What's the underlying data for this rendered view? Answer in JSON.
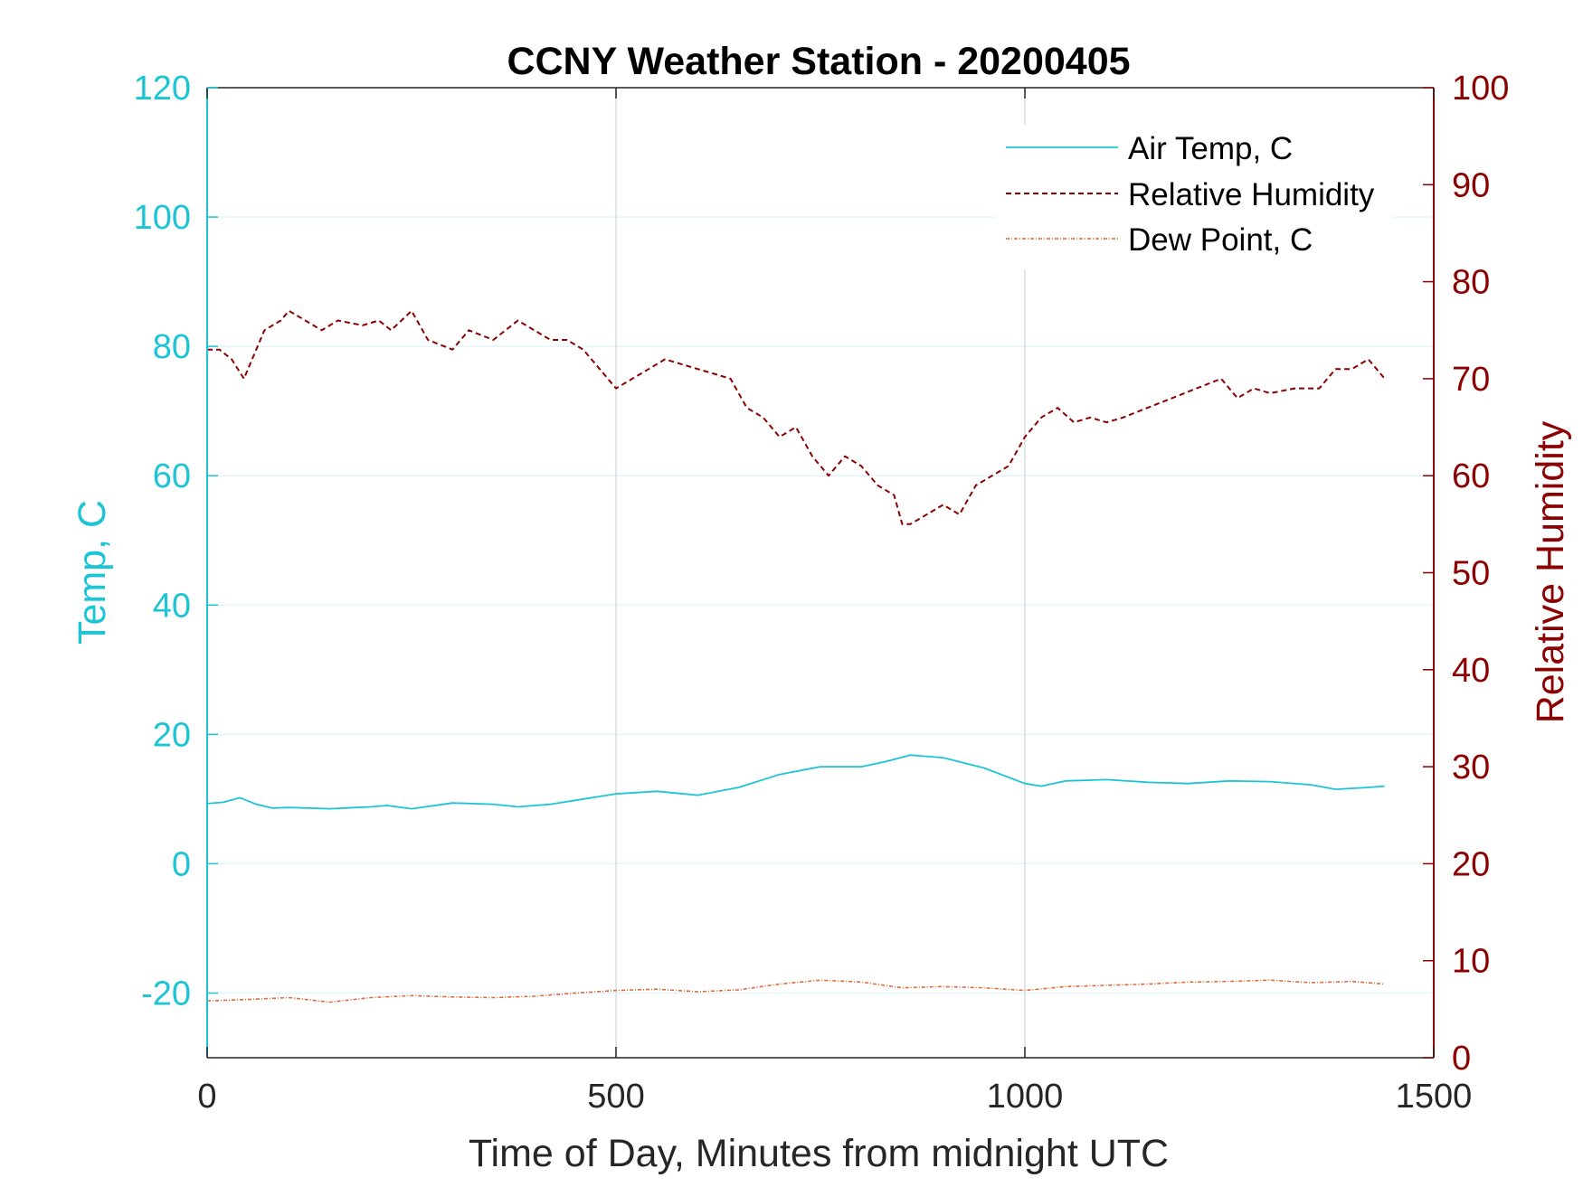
{
  "chart_data": {
    "type": "line",
    "title": "CCNY Weather Station - 20200405",
    "xlabel": "Time of Day, Minutes from midnight UTC",
    "ylabel_left": "Temp, C",
    "ylabel_right": "Relative Humidity",
    "xlim": [
      0,
      1500
    ],
    "ylim_left": [
      -30,
      120
    ],
    "ylim_right": [
      0,
      100
    ],
    "x_ticks": [
      "0",
      "500",
      "1000",
      "1500"
    ],
    "y_ticks_left": [
      "-20",
      "0",
      "20",
      "40",
      "60",
      "80",
      "100",
      "120"
    ],
    "y_ticks_right": [
      "0",
      "10",
      "20",
      "30",
      "40",
      "50",
      "60",
      "70",
      "80",
      "90",
      "100"
    ],
    "grid": true,
    "legend_position": "top-right",
    "colors": {
      "air_temp": "#1cc5d6",
      "relative_humidity": "#8b0000",
      "dew_point": "#e06a3a",
      "left_axis": "#1cc5d6",
      "right_axis": "#8b0000"
    },
    "series": [
      {
        "name": "Air Temp, C",
        "axis": "left",
        "style": "solid",
        "x": [
          0,
          20,
          40,
          60,
          80,
          100,
          150,
          200,
          220,
          250,
          300,
          350,
          380,
          420,
          450,
          500,
          550,
          600,
          650,
          700,
          750,
          800,
          830,
          860,
          900,
          950,
          1000,
          1020,
          1050,
          1100,
          1150,
          1200,
          1250,
          1300,
          1350,
          1380,
          1420,
          1440
        ],
        "y": [
          9.3,
          9.5,
          10.2,
          9.2,
          8.6,
          8.7,
          8.5,
          8.8,
          9.0,
          8.5,
          9.4,
          9.2,
          8.8,
          9.2,
          9.8,
          10.8,
          11.2,
          10.6,
          11.8,
          13.8,
          15.0,
          15.0,
          15.8,
          16.8,
          16.4,
          14.8,
          12.4,
          12.0,
          12.8,
          13.0,
          12.6,
          12.4,
          12.8,
          12.7,
          12.2,
          11.5,
          11.8,
          12.0
        ]
      },
      {
        "name": "Relative Humidity",
        "axis": "right",
        "style": "dashed",
        "x": [
          0,
          15,
          30,
          45,
          55,
          70,
          90,
          100,
          120,
          140,
          160,
          190,
          210,
          225,
          250,
          270,
          300,
          320,
          350,
          380,
          400,
          420,
          440,
          460,
          480,
          500,
          520,
          540,
          560,
          580,
          600,
          620,
          640,
          660,
          680,
          700,
          720,
          740,
          760,
          780,
          800,
          820,
          840,
          850,
          860,
          880,
          900,
          920,
          940,
          960,
          980,
          1000,
          1020,
          1040,
          1060,
          1080,
          1100,
          1120,
          1150,
          1180,
          1210,
          1240,
          1260,
          1280,
          1300,
          1330,
          1360,
          1380,
          1400,
          1420,
          1440
        ],
        "y": [
          73,
          73,
          72,
          70,
          72,
          75,
          76,
          77,
          76,
          75,
          76,
          75.5,
          76,
          75,
          77,
          74,
          73,
          75,
          74,
          76,
          75,
          74,
          74,
          73,
          71,
          69,
          70,
          71,
          72,
          71.5,
          71,
          70.5,
          70,
          67,
          66,
          64,
          65,
          62,
          60,
          62,
          61,
          59,
          58,
          55,
          55,
          56,
          57,
          56,
          59,
          60,
          61,
          64,
          66,
          67,
          65.5,
          66,
          65.5,
          66,
          67,
          68,
          69,
          70,
          68,
          69,
          68.5,
          69,
          69,
          71,
          71,
          72,
          70
        ]
      },
      {
        "name": "Dew Point, C",
        "axis": "left",
        "style": "dash-dot",
        "x": [
          0,
          50,
          100,
          150,
          200,
          250,
          300,
          350,
          400,
          450,
          500,
          550,
          600,
          650,
          700,
          750,
          800,
          850,
          900,
          950,
          1000,
          1050,
          1100,
          1150,
          1200,
          1250,
          1300,
          1350,
          1400,
          1440
        ],
        "y": [
          -21.2,
          -21.0,
          -20.7,
          -21.4,
          -20.7,
          -20.4,
          -20.6,
          -20.7,
          -20.5,
          -20.0,
          -19.6,
          -19.4,
          -19.8,
          -19.5,
          -18.6,
          -18.0,
          -18.3,
          -19.2,
          -19.0,
          -19.2,
          -19.6,
          -19.0,
          -18.8,
          -18.6,
          -18.3,
          -18.2,
          -18.0,
          -18.4,
          -18.2,
          -18.6
        ]
      }
    ]
  }
}
